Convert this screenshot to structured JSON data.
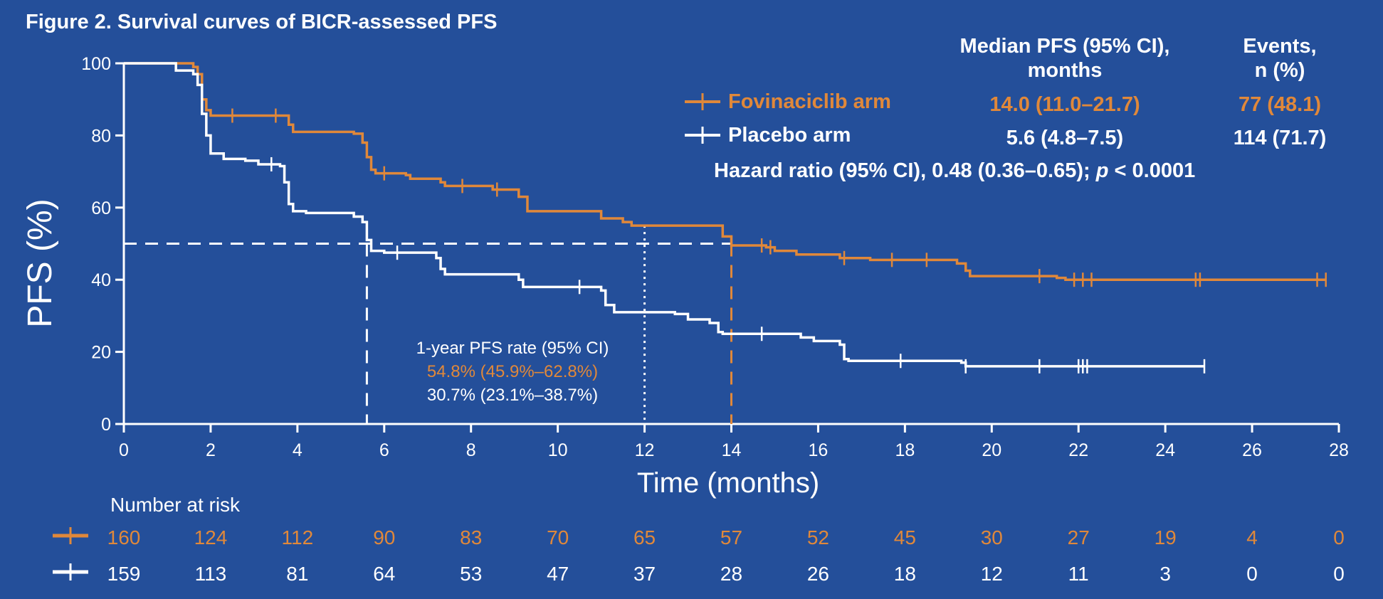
{
  "title": "Figure 2. Survival curves of BICR-assessed PFS",
  "colors": {
    "background": "#244f9a",
    "fovinaciclib": "#e0883a",
    "placebo": "#ffffff"
  },
  "legend": {
    "median_header_line1": "Median PFS (95% CI),",
    "median_header_line2": "months",
    "events_header_line1": "Events,",
    "events_header_line2": "n (%)",
    "rows": [
      {
        "name": "Fovinaciclib arm",
        "median": "14.0 (11.0–21.7)",
        "events": "77 (48.1)"
      },
      {
        "name": "Placebo arm",
        "median": "5.6 (4.8–7.5)",
        "events": "114 (71.7)"
      }
    ],
    "hazard_prefix": "Hazard ratio (95% CI), 0.48 (0.36–0.65); ",
    "hazard_p": "p",
    "hazard_suffix": " < 0.0001"
  },
  "annotation": {
    "line1": "1-year PFS rate (95% CI)",
    "line2": "54.8% (45.9%–62.8%)",
    "line3": "30.7% (23.1%–38.7%)"
  },
  "risk_table": {
    "title": "Number at risk",
    "fovinaciclib": [
      "160",
      "124",
      "112",
      "90",
      "83",
      "70",
      "65",
      "57",
      "52",
      "45",
      "30",
      "27",
      "19",
      "4",
      "0"
    ],
    "placebo": [
      "159",
      "113",
      "81",
      "64",
      "53",
      "47",
      "37",
      "28",
      "26",
      "18",
      "12",
      "11",
      "3",
      "0",
      "0"
    ]
  },
  "chart_data": {
    "type": "line",
    "step": true,
    "xlabel": "Time (months)",
    "ylabel": "PFS (%)",
    "xlim": [
      0,
      28
    ],
    "ylim": [
      0,
      100
    ],
    "xticks": [
      0,
      2,
      4,
      6,
      8,
      10,
      12,
      14,
      16,
      18,
      20,
      22,
      24,
      26,
      28
    ],
    "yticks": [
      0,
      20,
      40,
      60,
      80,
      100
    ],
    "reference_lines": {
      "median_y": 50,
      "median_x": [
        5.6,
        14.0
      ],
      "landmark_x": 12
    },
    "series": [
      {
        "name": "Fovinaciclib arm",
        "points": [
          [
            0,
            100
          ],
          [
            1.2,
            100
          ],
          [
            1.6,
            99
          ],
          [
            1.7,
            97
          ],
          [
            1.8,
            90
          ],
          [
            1.9,
            87
          ],
          [
            2.0,
            85.5
          ],
          [
            3.7,
            85.5
          ],
          [
            3.8,
            83
          ],
          [
            3.9,
            81
          ],
          [
            5.3,
            80.5
          ],
          [
            5.5,
            78
          ],
          [
            5.6,
            74
          ],
          [
            5.7,
            70.5
          ],
          [
            5.8,
            69.5
          ],
          [
            6.5,
            69
          ],
          [
            6.6,
            68
          ],
          [
            7.3,
            67
          ],
          [
            7.4,
            66
          ],
          [
            8.5,
            65
          ],
          [
            9.1,
            63
          ],
          [
            9.3,
            59
          ],
          [
            11.0,
            57
          ],
          [
            11.5,
            56
          ],
          [
            11.7,
            55
          ],
          [
            13.8,
            54.8
          ],
          [
            13.8,
            52
          ],
          [
            14.0,
            49.5
          ],
          [
            14.8,
            49
          ],
          [
            15.0,
            48
          ],
          [
            15.5,
            47
          ],
          [
            16.5,
            46
          ],
          [
            17.2,
            45.5
          ],
          [
            19.2,
            44.5
          ],
          [
            19.4,
            42.5
          ],
          [
            19.5,
            41
          ],
          [
            21.5,
            40.5
          ],
          [
            21.7,
            40
          ],
          [
            27.7,
            40
          ]
        ],
        "censor": [
          2.5,
          3.5,
          6.0,
          7.8,
          8.6,
          14.7,
          14.9,
          16.6,
          17.7,
          18.5,
          21.1,
          21.9,
          22.1,
          22.3,
          24.7,
          24.8,
          27.5,
          27.7
        ]
      },
      {
        "name": "Placebo arm",
        "points": [
          [
            0,
            100
          ],
          [
            0.8,
            100
          ],
          [
            1.2,
            98
          ],
          [
            1.6,
            97
          ],
          [
            1.7,
            94
          ],
          [
            1.8,
            86
          ],
          [
            1.9,
            80
          ],
          [
            2.0,
            75
          ],
          [
            2.3,
            73.5
          ],
          [
            2.8,
            73
          ],
          [
            3.1,
            72
          ],
          [
            3.6,
            71.5
          ],
          [
            3.7,
            67
          ],
          [
            3.8,
            61
          ],
          [
            3.9,
            59
          ],
          [
            4.2,
            58.5
          ],
          [
            5.3,
            57.5
          ],
          [
            5.5,
            56
          ],
          [
            5.6,
            51
          ],
          [
            5.7,
            48
          ],
          [
            6.0,
            47.5
          ],
          [
            7.2,
            46
          ],
          [
            7.3,
            43
          ],
          [
            7.4,
            41.5
          ],
          [
            9.1,
            40
          ],
          [
            9.2,
            38
          ],
          [
            11.0,
            37
          ],
          [
            11.1,
            33
          ],
          [
            11.3,
            31
          ],
          [
            12.7,
            30.5
          ],
          [
            13.0,
            29
          ],
          [
            13.5,
            28
          ],
          [
            13.7,
            25.5
          ],
          [
            13.8,
            25
          ],
          [
            15.6,
            24
          ],
          [
            15.9,
            23
          ],
          [
            16.5,
            22
          ],
          [
            16.6,
            18
          ],
          [
            16.7,
            17.5
          ],
          [
            19.3,
            17
          ],
          [
            19.4,
            16
          ],
          [
            24.9,
            16
          ]
        ],
        "censor": [
          3.4,
          6.3,
          10.5,
          14.7,
          17.9,
          19.4,
          21.1,
          22.0,
          22.1,
          22.2,
          24.9
        ]
      }
    ]
  }
}
